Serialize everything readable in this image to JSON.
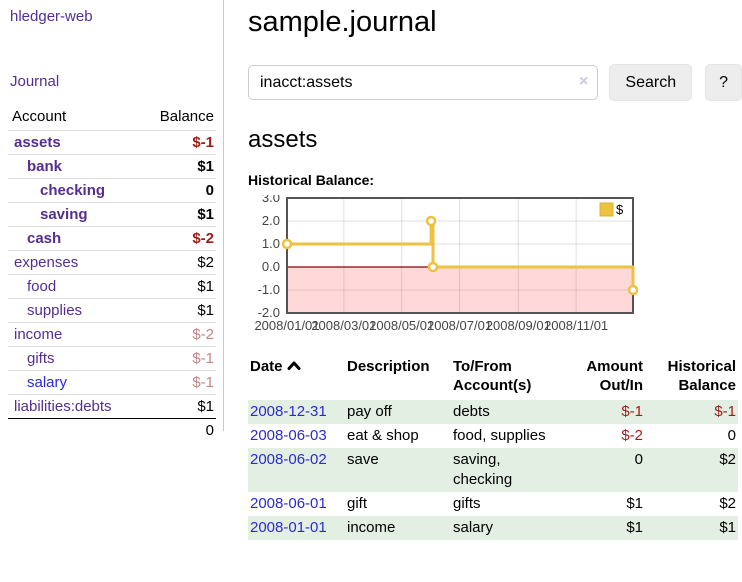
{
  "brand": "hledger-web",
  "nav": {
    "journal_label": "Journal"
  },
  "sidebar": {
    "header": {
      "account": "Account",
      "balance": "Balance"
    },
    "accounts": [
      {
        "name": "assets",
        "depth": 1,
        "bold": true,
        "link_color": "purple",
        "balance": "$-1",
        "balance_style": "negstrong"
      },
      {
        "name": "bank",
        "depth": 2,
        "bold": true,
        "link_color": "purple",
        "balance": "$1",
        "balance_style": "normal"
      },
      {
        "name": "checking",
        "depth": 3,
        "bold": true,
        "link_color": "purple",
        "balance": "0",
        "balance_style": "normal"
      },
      {
        "name": "saving",
        "depth": 3,
        "bold": true,
        "link_color": "purple",
        "balance": "$1",
        "balance_style": "normal"
      },
      {
        "name": "cash",
        "depth": 2,
        "bold": true,
        "link_color": "purple",
        "balance": "$-2",
        "balance_style": "negstrong"
      },
      {
        "name": "expenses",
        "depth": 1,
        "bold": false,
        "link_color": "purple",
        "balance": "$2",
        "balance_style": "normal"
      },
      {
        "name": "food",
        "depth": 2,
        "bold": false,
        "link_color": "purple",
        "balance": "$1",
        "balance_style": "normal"
      },
      {
        "name": "supplies",
        "depth": 2,
        "bold": false,
        "link_color": "purple",
        "balance": "$1",
        "balance_style": "normal"
      },
      {
        "name": "income",
        "depth": 1,
        "bold": false,
        "link_color": "purple",
        "balance": "$-2",
        "balance_style": "negmuted"
      },
      {
        "name": "gifts",
        "depth": 2,
        "bold": false,
        "link_color": "purple",
        "balance": "$-1",
        "balance_style": "negmuted"
      },
      {
        "name": "salary",
        "depth": 2,
        "bold": false,
        "link_color": "blue",
        "balance": "$-1",
        "balance_style": "negmuted"
      },
      {
        "name": "liabilities:debts",
        "depth": 1,
        "bold": false,
        "link_color": "purple",
        "balance": "$1",
        "balance_style": "normal"
      }
    ],
    "total": "0"
  },
  "header": {
    "title": "sample.journal"
  },
  "search": {
    "value": "inacct:assets",
    "clear_icon": "×",
    "button_label": "Search",
    "help_label": "?"
  },
  "account_page": {
    "heading": "assets",
    "chart_title": "Historical Balance:"
  },
  "chart_data": {
    "type": "line",
    "step": "after",
    "title": "Historical Balance:",
    "series": [
      {
        "name": "$",
        "color": "#edc240",
        "points": [
          [
            "2008-01-01",
            1
          ],
          [
            "2008-06-01",
            2
          ],
          [
            "2008-06-03",
            0
          ],
          [
            "2008-12-31",
            -1
          ]
        ]
      }
    ],
    "x_domain": [
      "2008-01-01",
      "2008-12-31"
    ],
    "x_tick_labels": [
      "2008/01/01",
      "2008/03/01",
      "2008/05/01",
      "2008/07/01",
      "2008/09/01",
      "2008/11/01"
    ],
    "x_tick_dates": [
      "2008-01-01",
      "2008-03-01",
      "2008-05-01",
      "2008-07-01",
      "2008-09-01",
      "2008-11-01"
    ],
    "y_ticks": [
      3,
      2,
      1,
      0,
      -1,
      -2
    ],
    "y_tick_labels": [
      "3.0",
      "2.0",
      "1.0",
      "0.0",
      "-1.0",
      "-2.0"
    ],
    "ylim": [
      -2,
      3
    ],
    "legend": {
      "label": "$",
      "position": "top-right"
    },
    "grid": true,
    "negative_region": {
      "from": 0,
      "to": -2
    },
    "colors": {
      "zero_line": "#8b0000",
      "negative_fill": "rgba(255,0,0,0.15)",
      "grid": "rgba(0,0,0,0.12)",
      "border": "#545454",
      "tick_text": "#444444"
    }
  },
  "register": {
    "columns": [
      {
        "lines": [
          "Date"
        ],
        "align": "left",
        "sorted": "asc"
      },
      {
        "lines": [
          "Description"
        ],
        "align": "left"
      },
      {
        "lines": [
          "To/From",
          "Account(s)"
        ],
        "align": "left"
      },
      {
        "lines": [
          "Amount",
          "Out/In"
        ],
        "align": "right"
      },
      {
        "lines": [
          "Historical",
          "Balance"
        ],
        "align": "right"
      }
    ],
    "rows": [
      {
        "date": "2008-12-31",
        "description": "pay off",
        "account_lines": [
          "debts"
        ],
        "amount": "$-1",
        "amount_neg": true,
        "balance": "$-1",
        "balance_neg": true,
        "shaded": true
      },
      {
        "date": "2008-06-03",
        "description": "eat & shop",
        "account_lines": [
          "food, supplies"
        ],
        "amount": "$-2",
        "amount_neg": true,
        "balance": "0",
        "balance_neg": false,
        "shaded": false
      },
      {
        "date": "2008-06-02",
        "description": "save",
        "account_lines": [
          "saving,",
          "checking"
        ],
        "amount": "0",
        "amount_neg": false,
        "balance": "$2",
        "balance_neg": false,
        "shaded": true
      },
      {
        "date": "2008-06-01",
        "description": "gift",
        "account_lines": [
          "gifts"
        ],
        "amount": "$1",
        "amount_neg": false,
        "balance": "$2",
        "balance_neg": false,
        "shaded": false
      },
      {
        "date": "2008-01-01",
        "description": "income",
        "account_lines": [
          "salary"
        ],
        "amount": "$1",
        "amount_neg": false,
        "balance": "$1",
        "balance_neg": false,
        "shaded": true
      }
    ]
  }
}
